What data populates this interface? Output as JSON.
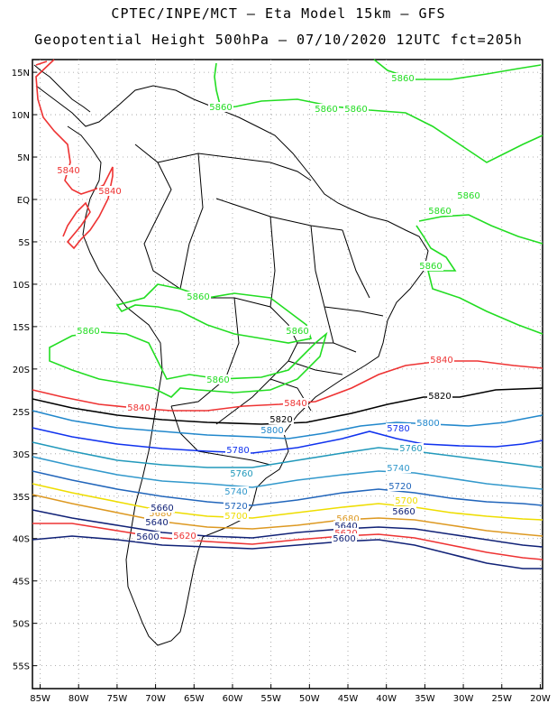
{
  "header": {
    "line1": "CPTEC/INPE/MCT –  Eta Model 15km – GFS",
    "line2": "Geopotential Height 500hPa – 07/10/2020 12UTC fct=205h"
  },
  "axes": {
    "lat_labels": [
      "15N",
      "10N",
      "5N",
      "EQ",
      "5S",
      "10S",
      "15S",
      "20S",
      "25S",
      "30S",
      "35S",
      "40S",
      "45S",
      "50S",
      "55S"
    ],
    "lon_labels": [
      "85W",
      "80W",
      "75W",
      "70W",
      "65W",
      "60W",
      "55W",
      "50W",
      "45W",
      "40W",
      "35W",
      "30W",
      "25W",
      "20W"
    ]
  },
  "colors": {
    "c5860": "#22dd22",
    "c5840": "#ee3333",
    "c5820": "#000000",
    "c5800": "#2288cc",
    "c5780": "#1133ee",
    "c5760": "#2299bb",
    "c5740": "#3399cc",
    "c5720": "#2266bb",
    "c5700": "#eedd00",
    "c5680": "#dd9922",
    "c5660": "#112277",
    "c5640": "#ee3333"
  },
  "contour_labels": [
    {
      "text": "5860",
      "key": "c5860"
    },
    {
      "text": "5860",
      "key": "c5860"
    },
    {
      "text": "5860",
      "key": "c5860"
    },
    {
      "text": "5860",
      "key": "c5860"
    },
    {
      "text": "5860",
      "key": "c5860"
    },
    {
      "text": "5860",
      "key": "c5860"
    },
    {
      "text": "5860",
      "key": "c5860"
    },
    {
      "text": "5860",
      "key": "c5860"
    },
    {
      "text": "5860",
      "key": "c5860"
    },
    {
      "text": "5860",
      "key": "c5860"
    },
    {
      "text": "5860",
      "key": "c5860"
    },
    {
      "text": "5840",
      "key": "c5840"
    },
    {
      "text": "5840",
      "key": "c5840"
    },
    {
      "text": "5840",
      "key": "c5840"
    },
    {
      "text": "5840",
      "key": "c5840"
    },
    {
      "text": "5840",
      "key": "c5840"
    },
    {
      "text": "5820",
      "key": "c5820"
    },
    {
      "text": "5820",
      "key": "c5820"
    },
    {
      "text": "5800",
      "key": "c5800"
    },
    {
      "text": "5800",
      "key": "c5800"
    },
    {
      "text": "5780",
      "key": "c5780"
    },
    {
      "text": "5780",
      "key": "c5780"
    },
    {
      "text": "5760",
      "key": "c5760"
    },
    {
      "text": "5760",
      "key": "c5760"
    },
    {
      "text": "5740",
      "key": "c5740"
    },
    {
      "text": "5740",
      "key": "c5740"
    },
    {
      "text": "5720",
      "key": "c5720"
    },
    {
      "text": "5720",
      "key": "c5720"
    },
    {
      "text": "5700",
      "key": "c5700"
    },
    {
      "text": "5700",
      "key": "c5700"
    },
    {
      "text": "5680",
      "key": "c5680"
    },
    {
      "text": "5680",
      "key": "c5680"
    },
    {
      "text": "5660",
      "key": "c5660"
    },
    {
      "text": "5660",
      "key": "c5660"
    },
    {
      "text": "5640",
      "key": "c5660"
    },
    {
      "text": "5640",
      "key": "c5660"
    },
    {
      "text": "5620",
      "key": "c5640"
    },
    {
      "text": "5620",
      "key": "c5640"
    },
    {
      "text": "5600",
      "key": "c5660"
    },
    {
      "text": "5600",
      "key": "c5660"
    }
  ]
}
